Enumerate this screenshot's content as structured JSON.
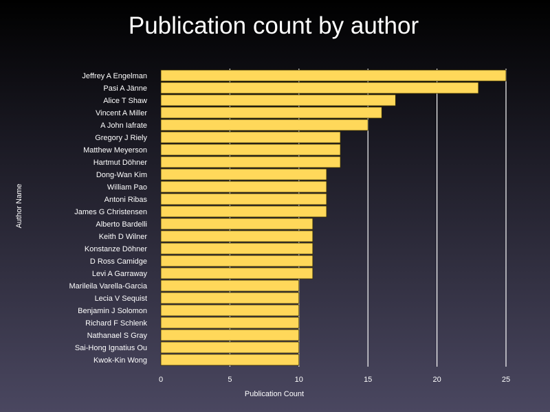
{
  "chart_data": {
    "type": "bar",
    "orientation": "horizontal",
    "title": "Publication count by author",
    "xlabel": "Publication Count",
    "ylabel": "Author Name",
    "xlim": [
      0,
      25
    ],
    "xticks": [
      0,
      5,
      10,
      15,
      20,
      25
    ],
    "grid": "vertical",
    "colors": {
      "bar": "#FFD85A",
      "bar_edge": "#3a3000",
      "grid": "#ffffff",
      "text": "#ffffff"
    },
    "categories": [
      "Jeffrey A Engelman",
      "Pasi A Jänne",
      "Alice T Shaw",
      "Vincent A Miller",
      "A John Iafrate",
      "Gregory J Riely",
      "Matthew Meyerson",
      "Hartmut Döhner",
      "Dong-Wan Kim",
      "William Pao",
      "Antoni Ribas",
      "James G Christensen",
      "Alberto Bardelli",
      "Keith D Wilner",
      "Konstanze Döhner",
      "D Ross Camidge",
      "Levi A Garraway",
      "Marileila Varella-Garcia",
      "Lecia V Sequist",
      "Benjamin J Solomon",
      "Richard F Schlenk",
      "Nathanael S Gray",
      "Sai-Hong Ignatius Ou",
      "Kwok-Kin Wong"
    ],
    "values": [
      25,
      23,
      17,
      16,
      15,
      13,
      13,
      13,
      12,
      12,
      12,
      12,
      11,
      11,
      11,
      11,
      11,
      10,
      10,
      10,
      10,
      10,
      10,
      10
    ]
  }
}
